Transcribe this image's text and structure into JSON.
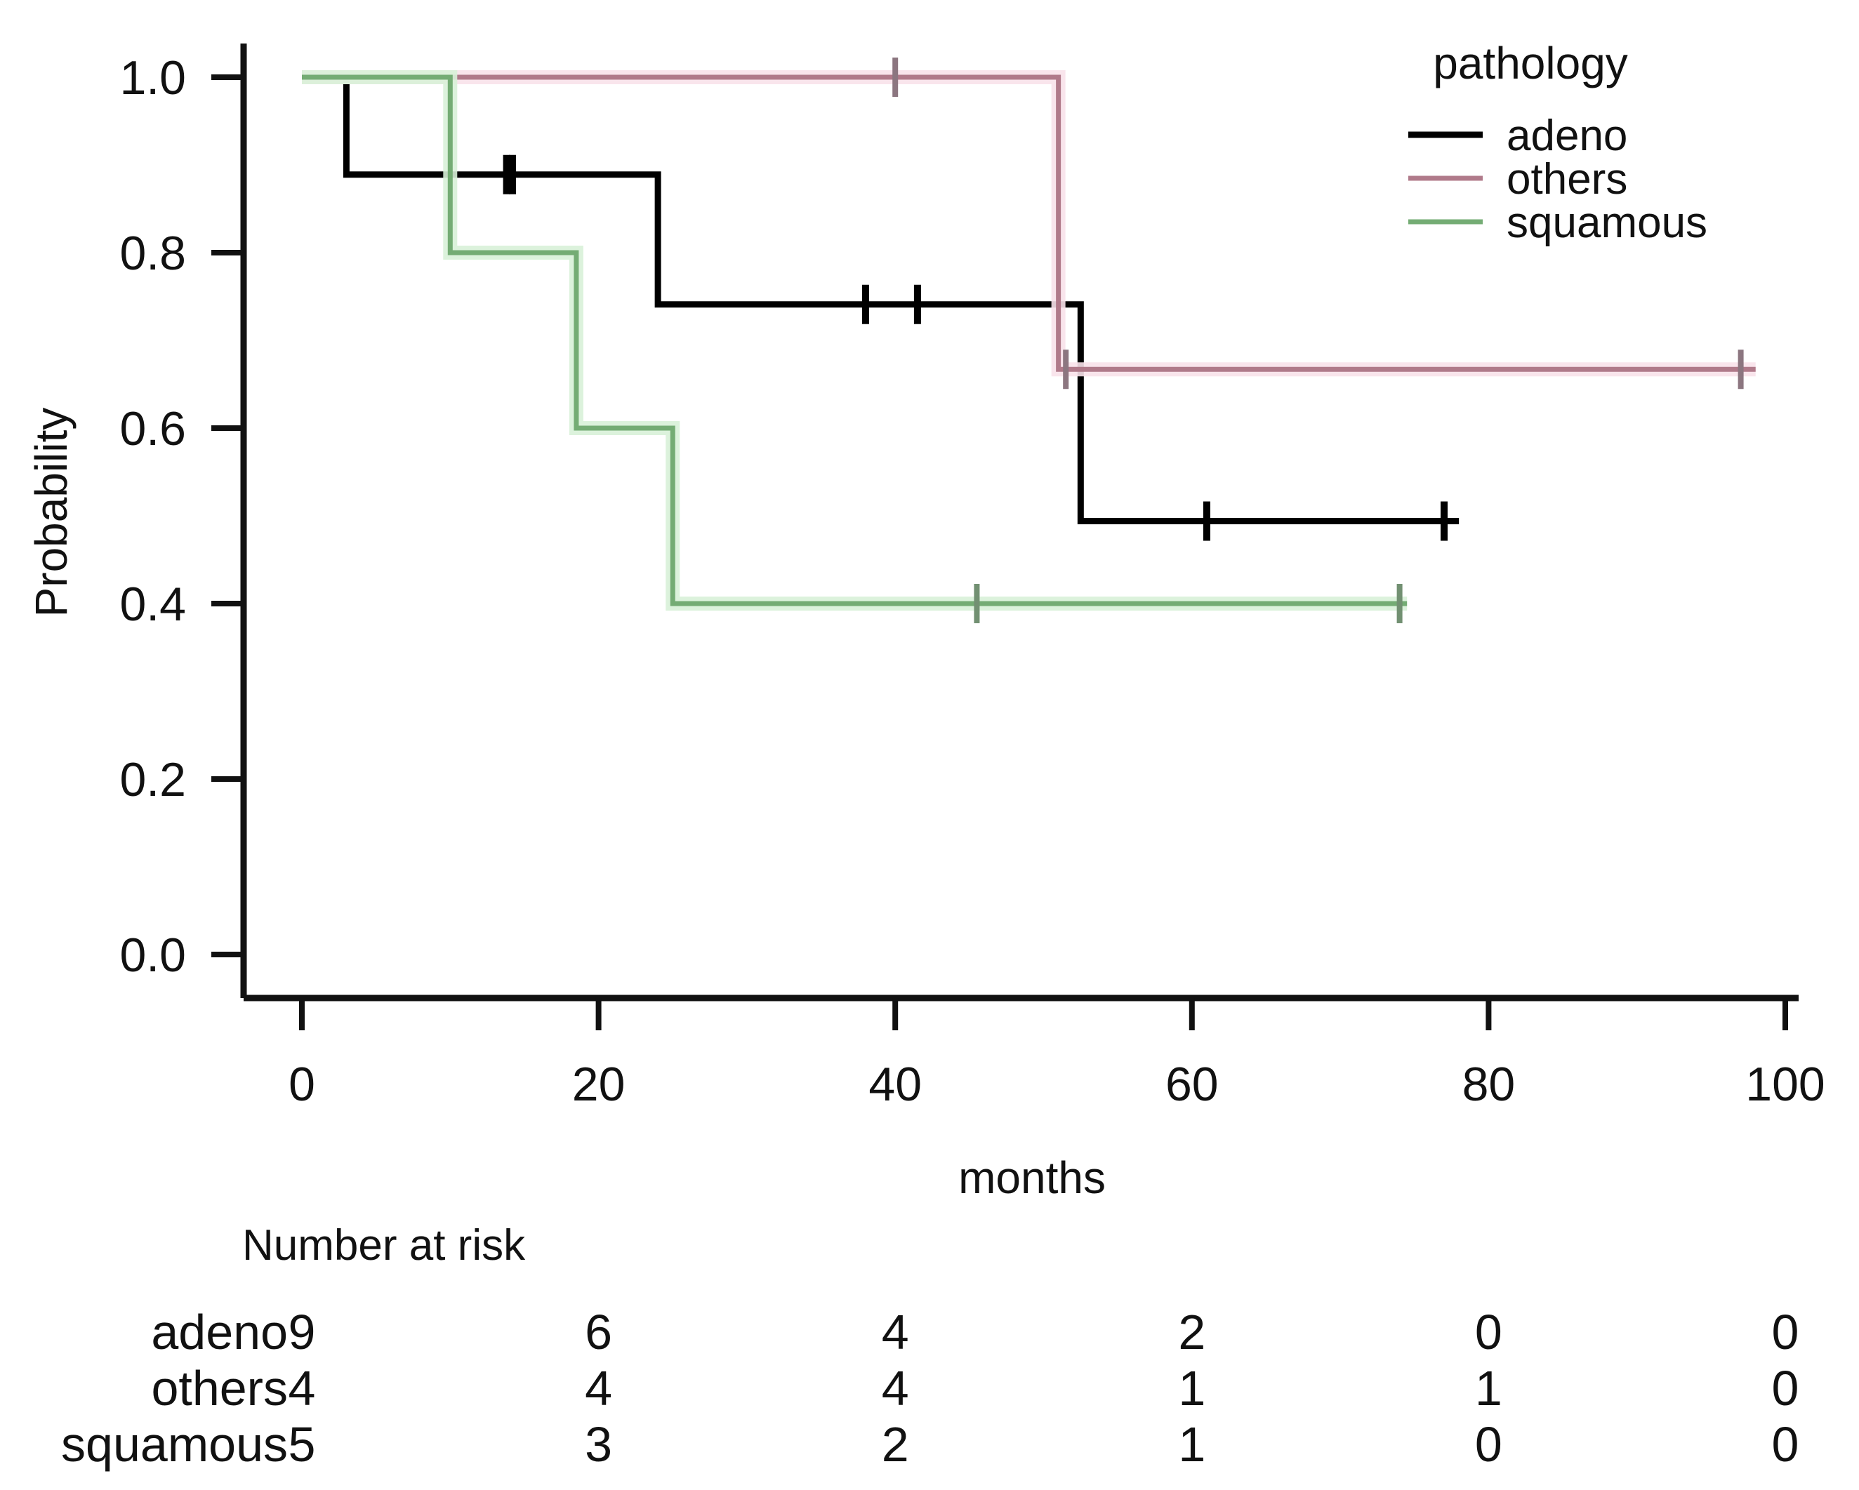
{
  "chart_data": {
    "type": "line",
    "subtype": "kaplan-meier-step",
    "title": "",
    "xlabel": "months",
    "ylabel": "Probability",
    "xlim": [
      0,
      100
    ],
    "ylim": [
      0.0,
      1.0
    ],
    "grid": false,
    "x_ticks": {
      "values": [
        0,
        20,
        40,
        60,
        80,
        100
      ],
      "labels": [
        "0",
        "20",
        "40",
        "60",
        "80",
        "100"
      ]
    },
    "y_ticks": {
      "values": [
        0.0,
        0.2,
        0.4,
        0.6,
        0.8,
        1.0
      ],
      "labels": [
        "0.0",
        "0.2",
        "0.4",
        "0.6",
        "0.8",
        "1.0"
      ]
    },
    "legend": {
      "title": "pathology",
      "position": "top-right",
      "entries": [
        {
          "label": "adeno",
          "color": "#000000"
        },
        {
          "label": "others",
          "color": "#b07a8a"
        },
        {
          "label": "squamous",
          "color": "#74ac74"
        }
      ]
    },
    "series": [
      {
        "name": "adeno",
        "color": "#000000",
        "glow": "",
        "censor_color": "#000000",
        "steps": [
          [
            0,
            1.0
          ],
          [
            3,
            1.0
          ],
          [
            3,
            0.889
          ],
          [
            24,
            0.889
          ],
          [
            24,
            0.741
          ],
          [
            52.5,
            0.741
          ],
          [
            52.5,
            0.494
          ],
          [
            78,
            0.494
          ]
        ],
        "censors": [
          [
            13.8,
            0.889
          ],
          [
            14.2,
            0.889
          ],
          [
            38,
            0.741
          ],
          [
            41.5,
            0.741
          ],
          [
            61,
            0.494
          ],
          [
            77,
            0.494
          ]
        ]
      },
      {
        "name": "others",
        "color": "#b07a8a",
        "glow": "#f8e2ea",
        "censor_color": "#8c7680",
        "steps": [
          [
            0,
            1.0
          ],
          [
            51,
            1.0
          ],
          [
            51,
            0.667
          ],
          [
            98,
            0.667
          ]
        ],
        "censors": [
          [
            40,
            1.0
          ],
          [
            51.5,
            0.667
          ],
          [
            97,
            0.667
          ]
        ]
      },
      {
        "name": "squamous",
        "color": "#74ac74",
        "glow": "#d8f1d8",
        "censor_color": "#729072",
        "steps": [
          [
            0,
            1.0
          ],
          [
            10,
            1.0
          ],
          [
            10,
            0.8
          ],
          [
            18.5,
            0.8
          ],
          [
            18.5,
            0.6
          ],
          [
            25,
            0.6
          ],
          [
            25,
            0.4
          ],
          [
            74.5,
            0.4
          ]
        ],
        "censors": [
          [
            45.5,
            0.4
          ],
          [
            74,
            0.4
          ]
        ]
      }
    ],
    "risk_table": {
      "title": "Number at risk",
      "columns_months": [
        0,
        20,
        40,
        60,
        80,
        100
      ],
      "rows": [
        {
          "label": "adeno",
          "values": [
            "9",
            "6",
            "4",
            "2",
            "0",
            "0"
          ]
        },
        {
          "label": "others",
          "values": [
            "4",
            "4",
            "4",
            "1",
            "1",
            "0"
          ]
        },
        {
          "label": "squamous",
          "values": [
            "5",
            "3",
            "2",
            "1",
            "0",
            "0"
          ]
        }
      ]
    }
  }
}
